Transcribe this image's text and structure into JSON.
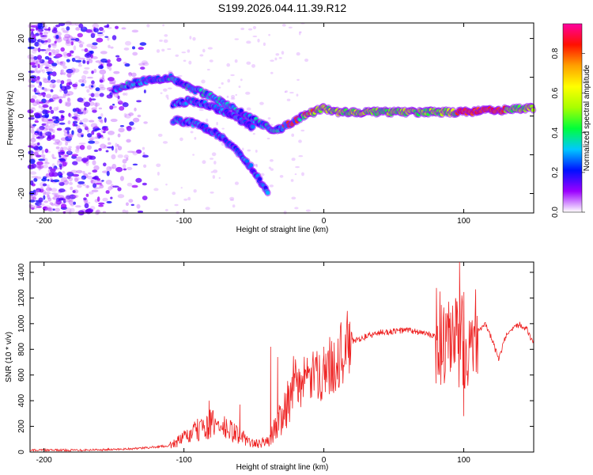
{
  "title": "S199.2026.044.11.39.R12",
  "charts": [
    {
      "type": "heatmap",
      "xlabel": "Height of straight line (km)",
      "ylabel": "Frequency (Hz)",
      "xlim": [
        -210,
        150
      ],
      "ylim": [
        -25,
        24
      ],
      "xticks": [
        -200,
        -100,
        0,
        100
      ],
      "yticks": [
        -20,
        -10,
        0,
        10,
        20
      ],
      "colorbar": {
        "label": "Normalized spectral amplitude",
        "range": [
          0,
          0.95
        ],
        "ticks": [
          "0.0",
          "0.2",
          "0.4",
          "0.6",
          "0.8"
        ],
        "colors": [
          "#ffffff",
          "#9b00ff",
          "#0010ff",
          "#00c8ff",
          "#00ff3a",
          "#a8ff00",
          "#ffff00",
          "#ffa000",
          "#ff1000",
          "#ff00a0"
        ]
      },
      "ridges": [
        {
          "name": "main-branch",
          "points": [
            [
              -150,
              7
            ],
            [
              -130,
              9
            ],
            [
              -110,
              10
            ],
            [
              -100,
              8
            ],
            [
              -80,
              5
            ],
            [
              -60,
              1
            ],
            [
              -45,
              -2
            ],
            [
              -35,
              -4
            ],
            [
              -25,
              -2
            ],
            [
              -15,
              0
            ],
            [
              0,
              2
            ],
            [
              10,
              1
            ],
            [
              50,
              1
            ],
            [
              100,
              1
            ],
            [
              150,
              2
            ]
          ]
        },
        {
          "name": "upper-arc",
          "points": [
            [
              -108,
              3
            ],
            [
              -95,
              4
            ],
            [
              -80,
              2.5
            ],
            [
              -65,
              0
            ],
            [
              -50,
              -3
            ]
          ]
        },
        {
          "name": "lower-branch",
          "points": [
            [
              -108,
              -1
            ],
            [
              -90,
              -2
            ],
            [
              -75,
              -5
            ],
            [
              -62,
              -9
            ],
            [
              -50,
              -14
            ],
            [
              -40,
              -20
            ]
          ]
        }
      ]
    },
    {
      "type": "line",
      "xlabel": "Height of straight line (km)",
      "ylabel": "SNR (10 * v/v)",
      "xlim": [
        -210,
        150
      ],
      "ylim": [
        0,
        1480
      ],
      "xticks": [
        -200,
        -100,
        0,
        100
      ],
      "yticks": [
        0,
        200,
        400,
        600,
        800,
        1000,
        1200,
        1400
      ],
      "color": "#ee2222",
      "series_envelope": {
        "x": [
          -210,
          -180,
          -150,
          -130,
          -110,
          -100,
          -90,
          -80,
          -70,
          -60,
          -50,
          -40,
          -35,
          -30,
          -25,
          -20,
          -10,
          0,
          10,
          20,
          30,
          40,
          50,
          60,
          70,
          80,
          85,
          90,
          95,
          100,
          105,
          110,
          115,
          120,
          125,
          130,
          135,
          140,
          145,
          150
        ],
        "y": [
          15,
          15,
          20,
          30,
          50,
          110,
          170,
          220,
          180,
          130,
          60,
          80,
          180,
          300,
          420,
          520,
          570,
          620,
          730,
          860,
          900,
          930,
          940,
          950,
          930,
          900,
          850,
          800,
          850,
          880,
          900,
          950,
          1000,
          880,
          720,
          900,
          950,
          1000,
          960,
          840
        ]
      },
      "spikes": [
        {
          "x": -82,
          "y": 400
        },
        {
          "x": -60,
          "y": 370
        },
        {
          "x": -38,
          "y": 820
        },
        {
          "x": -33,
          "y": 740
        },
        {
          "x": 0,
          "y": 820
        },
        {
          "x": 97,
          "y": 1480
        },
        {
          "x": 100,
          "y": 280
        }
      ]
    }
  ]
}
